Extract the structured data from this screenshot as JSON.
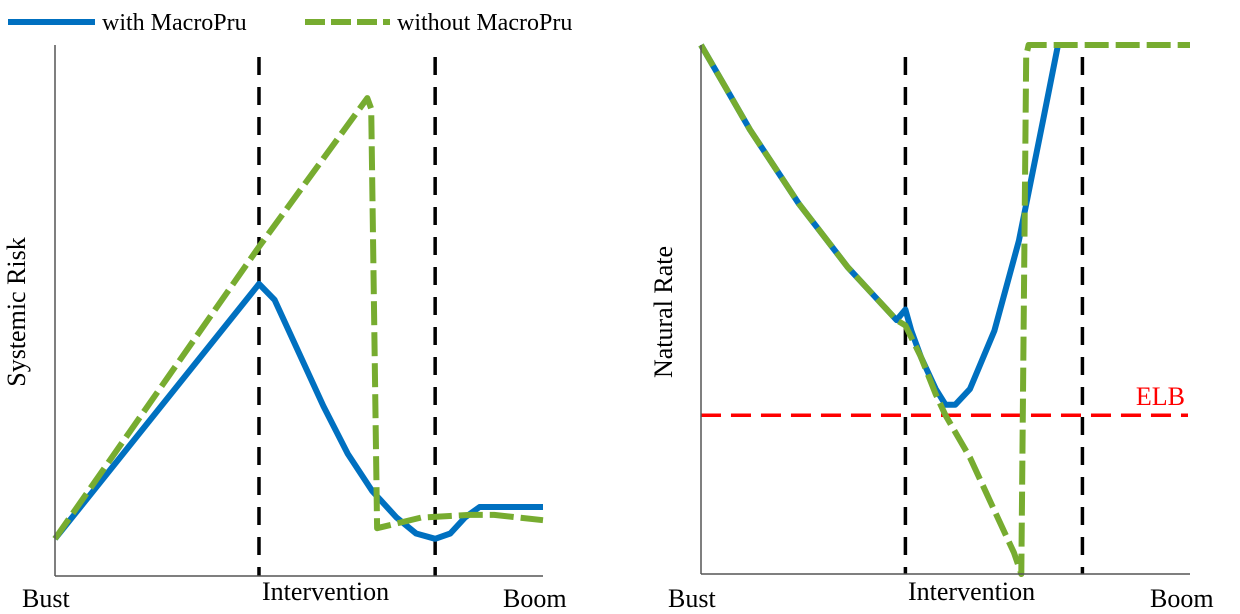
{
  "legend": {
    "position": "top-left",
    "items": [
      {
        "label": "with MacroPru",
        "color": "#0070C0",
        "style": "solid"
      },
      {
        "label": "without MacroPru",
        "color": "#77AC30",
        "style": "dashed"
      }
    ]
  },
  "colors": {
    "with": "#0070C0",
    "without": "#77AC30",
    "elb": "#FF0000",
    "vline": "#000000",
    "axis": "#555555"
  },
  "chart_data": [
    {
      "type": "line",
      "title": "",
      "ylabel": "Systemic Risk",
      "xlabel": "",
      "xlim": [
        0,
        1
      ],
      "ylim": [
        0,
        1
      ],
      "grid": false,
      "x_tick_labels": [
        {
          "label": "Bust",
          "x": 0
        },
        {
          "label": "Intervention",
          "x": 0.5
        },
        {
          "label": "Boom",
          "x": 1
        }
      ],
      "vlines": [
        0.418,
        0.779
      ],
      "series": [
        {
          "name": "with MacroPru",
          "x": [
            0,
            0.418,
            0.45,
            0.5,
            0.55,
            0.6,
            0.65,
            0.7,
            0.74,
            0.779,
            0.81,
            0.84,
            0.87,
            0.9,
            1.0
          ],
          "y": [
            0.07,
            0.55,
            0.52,
            0.42,
            0.32,
            0.23,
            0.16,
            0.11,
            0.08,
            0.07,
            0.08,
            0.11,
            0.13,
            0.13,
            0.13
          ]
        },
        {
          "name": "without MacroPru",
          "x": [
            0,
            0.418,
            0.64,
            0.648,
            0.66,
            0.75,
            0.85,
            0.9,
            1.0
          ],
          "y": [
            0.07,
            0.62,
            0.9,
            0.88,
            0.09,
            0.11,
            0.115,
            0.115,
            0.105
          ]
        }
      ]
    },
    {
      "type": "line",
      "title": "",
      "ylabel": "Natural Rate",
      "xlabel": "",
      "xlim": [
        0,
        1
      ],
      "ylim": [
        0,
        1
      ],
      "grid": false,
      "x_tick_labels": [
        {
          "label": "Bust",
          "x": 0
        },
        {
          "label": "Intervention",
          "x": 0.5
        },
        {
          "label": "Boom",
          "x": 1
        }
      ],
      "vlines": [
        0.418,
        0.78
      ],
      "hline": {
        "label": "ELB",
        "y": 0.3
      },
      "series": [
        {
          "name": "with MacroPru",
          "x": [
            0,
            0.05,
            0.1,
            0.15,
            0.2,
            0.25,
            0.3,
            0.35,
            0.4,
            0.418,
            0.43,
            0.45,
            0.48,
            0.5,
            0.52,
            0.55,
            0.6,
            0.65,
            0.7,
            0.73
          ],
          "y": [
            1.0,
            0.92,
            0.84,
            0.77,
            0.7,
            0.64,
            0.58,
            0.53,
            0.48,
            0.5,
            0.46,
            0.41,
            0.35,
            0.32,
            0.32,
            0.35,
            0.46,
            0.63,
            0.86,
            1.0
          ]
        },
        {
          "name": "without MacroPru",
          "x": [
            0,
            0.05,
            0.1,
            0.15,
            0.2,
            0.25,
            0.3,
            0.35,
            0.4,
            0.418,
            0.45,
            0.48,
            0.5,
            0.55,
            0.6,
            0.64,
            0.655,
            0.665,
            0.67,
            1.0
          ],
          "y": [
            1.0,
            0.92,
            0.84,
            0.77,
            0.7,
            0.64,
            0.58,
            0.53,
            0.48,
            0.47,
            0.41,
            0.34,
            0.3,
            0.22,
            0.12,
            0.04,
            0.0,
            0.98,
            1.0,
            1.0
          ]
        }
      ]
    }
  ]
}
